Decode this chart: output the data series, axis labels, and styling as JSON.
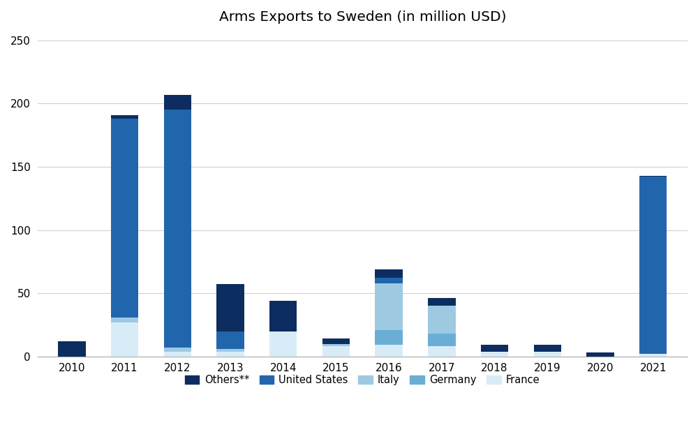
{
  "title": "Arms Exports to Sweden (in million USD)",
  "years": [
    2010,
    2011,
    2012,
    2013,
    2014,
    2015,
    2016,
    2017,
    2018,
    2019,
    2020,
    2021
  ],
  "series": {
    "France": [
      0,
      27,
      4,
      4,
      20,
      8,
      9,
      8,
      4,
      4,
      0,
      2
    ],
    "Germany": [
      0,
      0,
      0,
      0,
      0,
      0,
      12,
      10,
      0,
      0,
      0,
      0
    ],
    "Italy": [
      0,
      4,
      3,
      2,
      0,
      2,
      37,
      22,
      0,
      0,
      0,
      0
    ],
    "United States": [
      0,
      157,
      188,
      14,
      0,
      0,
      4,
      0,
      0,
      0,
      0,
      140
    ],
    "Others": [
      12,
      3,
      12,
      37,
      24,
      4,
      7,
      6,
      5,
      5,
      3,
      1
    ]
  },
  "colors": {
    "France": "#d8ecf8",
    "Germany": "#6aaed6",
    "Italy": "#9ecae1",
    "United States": "#2166ac",
    "Others": "#0d2d60"
  },
  "ylim": [
    0,
    250
  ],
  "yticks": [
    0,
    50,
    100,
    150,
    200,
    250
  ],
  "background_color": "#ffffff",
  "grid_color": "#d0d0d0"
}
